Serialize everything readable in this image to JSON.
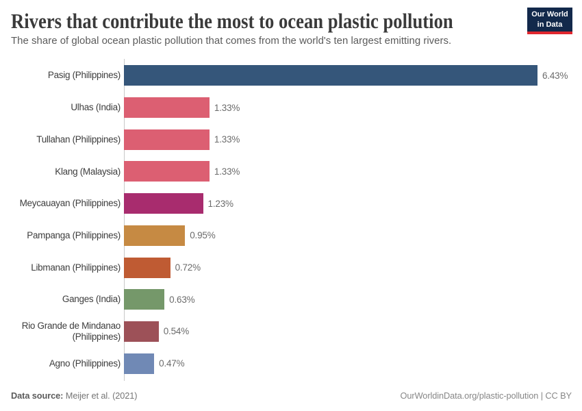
{
  "title": "Rivers that contribute the most to ocean plastic pollution",
  "subtitle": "The share of global ocean plastic pollution that comes from the world's ten largest emitting rivers.",
  "logo": {
    "line1": "Our World",
    "line2": "in Data",
    "bg_color": "#12294B",
    "accent_color": "#E0272E"
  },
  "footer": {
    "source_label": "Data source:",
    "source_value": " Meijer et al. (2021)",
    "right": "OurWorldinData.org/plastic-pollution | CC BY"
  },
  "chart_data": {
    "type": "bar",
    "orientation": "horizontal",
    "categories": [
      "Pasig (Philippines)",
      "Ulhas (India)",
      "Tullahan (Philippines)",
      "Klang (Malaysia)",
      "Meycauayan (Philippines)",
      "Pampanga (Philippines)",
      "Libmanan (Philippines)",
      "Ganges (India)",
      "Rio Grande de Mindanao (Philippines)",
      "Agno (Philippines)"
    ],
    "values": [
      6.43,
      1.33,
      1.33,
      1.33,
      1.23,
      0.95,
      0.72,
      0.63,
      0.54,
      0.47
    ],
    "value_labels": [
      "6.43%",
      "1.33%",
      "1.33%",
      "1.33%",
      "1.23%",
      "0.95%",
      "0.72%",
      "0.63%",
      "0.54%",
      "0.47%"
    ],
    "colors": [
      "#35567A",
      "#DC5F72",
      "#DC5F72",
      "#DC5F72",
      "#A82C6E",
      "#C68A43",
      "#BF5B33",
      "#75986A",
      "#9D5158",
      "#7089B5"
    ],
    "xlim": [
      0,
      6.43
    ],
    "xlabel": "",
    "ylabel": "",
    "grid": false,
    "legend": false
  }
}
